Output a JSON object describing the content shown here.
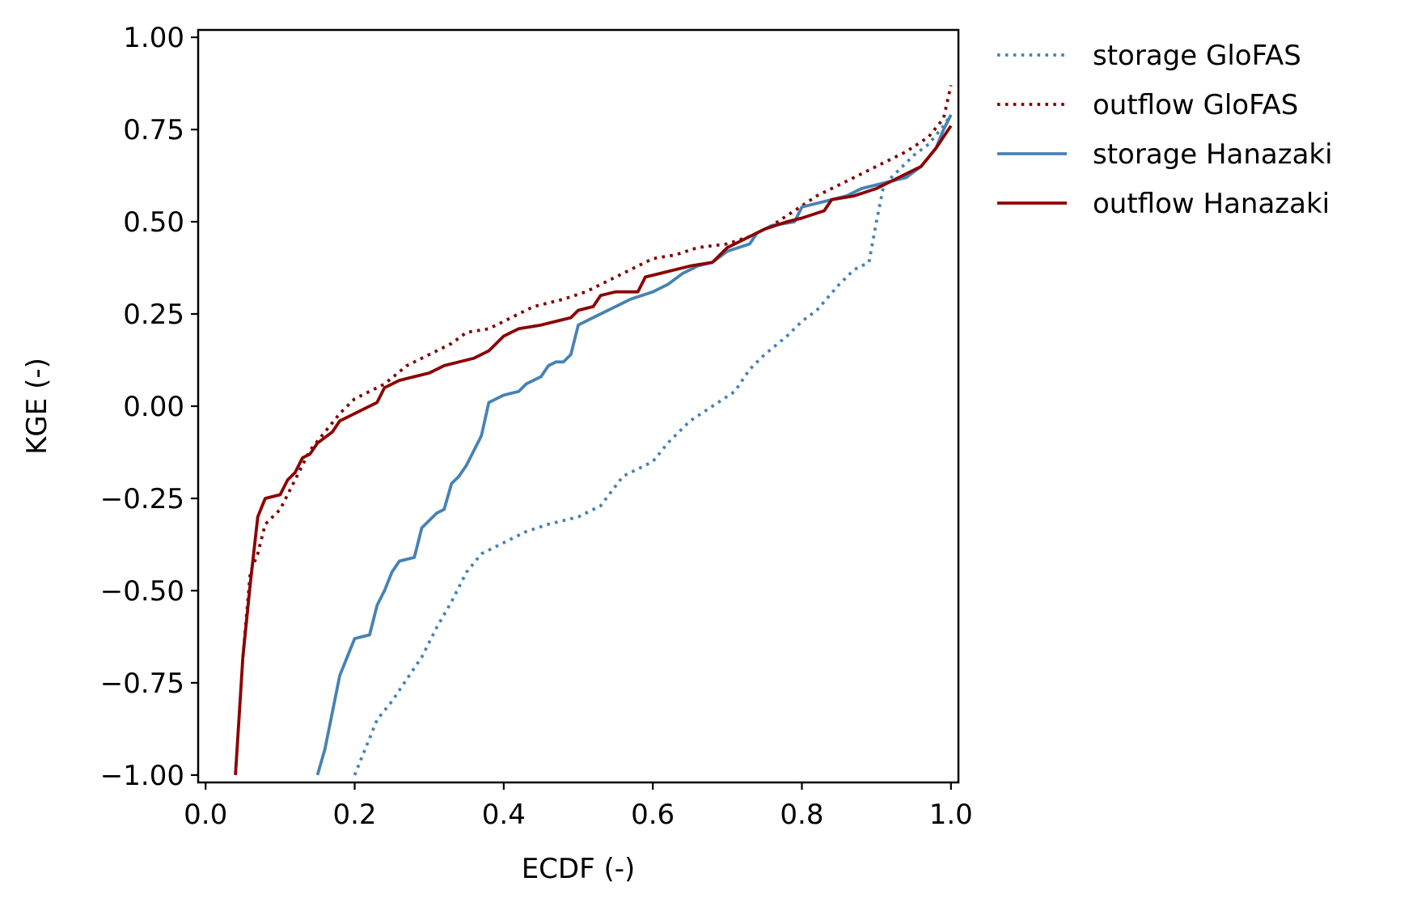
{
  "chart_data": {
    "type": "line",
    "xlabel": "ECDF (-)",
    "ylabel": "KGE (-)",
    "xlim": [
      -0.01,
      1.01
    ],
    "ylim": [
      -1.02,
      1.02
    ],
    "xticks": [
      "0.0",
      "0.2",
      "0.4",
      "0.6",
      "0.8",
      "1.0"
    ],
    "yticks": [
      "1.00",
      "0.75",
      "0.50",
      "0.25",
      "0.00",
      "−0.25",
      "−0.50",
      "−0.75",
      "−1.00"
    ],
    "grid": false,
    "legend_position": "outside-right",
    "series": [
      {
        "name": "storage GloFAS",
        "color": "#4682b4",
        "line_style": "dotted",
        "points": [
          [
            0.2,
            -1.0
          ],
          [
            0.21,
            -0.95
          ],
          [
            0.22,
            -0.9
          ],
          [
            0.23,
            -0.85
          ],
          [
            0.25,
            -0.8
          ],
          [
            0.27,
            -0.74
          ],
          [
            0.29,
            -0.68
          ],
          [
            0.31,
            -0.6
          ],
          [
            0.33,
            -0.53
          ],
          [
            0.35,
            -0.45
          ],
          [
            0.37,
            -0.4
          ],
          [
            0.4,
            -0.37
          ],
          [
            0.43,
            -0.34
          ],
          [
            0.46,
            -0.32
          ],
          [
            0.5,
            -0.3
          ],
          [
            0.53,
            -0.27
          ],
          [
            0.56,
            -0.19
          ],
          [
            0.6,
            -0.15
          ],
          [
            0.62,
            -0.1
          ],
          [
            0.65,
            -0.04
          ],
          [
            0.68,
            0.0
          ],
          [
            0.71,
            0.04
          ],
          [
            0.73,
            0.1
          ],
          [
            0.75,
            0.14
          ],
          [
            0.78,
            0.19
          ],
          [
            0.8,
            0.23
          ],
          [
            0.82,
            0.26
          ],
          [
            0.85,
            0.33
          ],
          [
            0.87,
            0.37
          ],
          [
            0.89,
            0.39
          ],
          [
            0.9,
            0.5
          ],
          [
            0.91,
            0.6
          ],
          [
            0.93,
            0.64
          ],
          [
            0.95,
            0.68
          ],
          [
            0.97,
            0.71
          ],
          [
            0.99,
            0.76
          ],
          [
            1.0,
            0.79
          ]
        ]
      },
      {
        "name": "outflow GloFAS",
        "color": "#800000",
        "line_style": "dotted",
        "points": [
          [
            0.05,
            -0.68
          ],
          [
            0.06,
            -0.45
          ],
          [
            0.07,
            -0.4
          ],
          [
            0.08,
            -0.32
          ],
          [
            0.1,
            -0.28
          ],
          [
            0.12,
            -0.2
          ],
          [
            0.14,
            -0.12
          ],
          [
            0.16,
            -0.07
          ],
          [
            0.18,
            -0.02
          ],
          [
            0.2,
            0.02
          ],
          [
            0.22,
            0.04
          ],
          [
            0.24,
            0.06
          ],
          [
            0.27,
            0.11
          ],
          [
            0.3,
            0.14
          ],
          [
            0.33,
            0.17
          ],
          [
            0.35,
            0.2
          ],
          [
            0.38,
            0.21
          ],
          [
            0.41,
            0.24
          ],
          [
            0.44,
            0.27
          ],
          [
            0.48,
            0.29
          ],
          [
            0.51,
            0.31
          ],
          [
            0.54,
            0.34
          ],
          [
            0.57,
            0.37
          ],
          [
            0.6,
            0.4
          ],
          [
            0.63,
            0.41
          ],
          [
            0.66,
            0.43
          ],
          [
            0.7,
            0.44
          ],
          [
            0.73,
            0.46
          ],
          [
            0.76,
            0.49
          ],
          [
            0.79,
            0.53
          ],
          [
            0.82,
            0.57
          ],
          [
            0.85,
            0.6
          ],
          [
            0.88,
            0.63
          ],
          [
            0.91,
            0.66
          ],
          [
            0.94,
            0.69
          ],
          [
            0.97,
            0.73
          ],
          [
            0.99,
            0.78
          ],
          [
            1.0,
            0.87
          ]
        ]
      },
      {
        "name": "storage Hanazaki",
        "color": "#4682b4",
        "line_style": "solid",
        "points": [
          [
            0.15,
            -1.0
          ],
          [
            0.16,
            -0.93
          ],
          [
            0.17,
            -0.83
          ],
          [
            0.18,
            -0.73
          ],
          [
            0.19,
            -0.68
          ],
          [
            0.2,
            -0.63
          ],
          [
            0.22,
            -0.62
          ],
          [
            0.23,
            -0.54
          ],
          [
            0.24,
            -0.5
          ],
          [
            0.25,
            -0.45
          ],
          [
            0.26,
            -0.42
          ],
          [
            0.28,
            -0.41
          ],
          [
            0.29,
            -0.33
          ],
          [
            0.3,
            -0.31
          ],
          [
            0.31,
            -0.29
          ],
          [
            0.32,
            -0.28
          ],
          [
            0.33,
            -0.21
          ],
          [
            0.34,
            -0.19
          ],
          [
            0.35,
            -0.16
          ],
          [
            0.36,
            -0.12
          ],
          [
            0.37,
            -0.08
          ],
          [
            0.38,
            0.01
          ],
          [
            0.4,
            0.03
          ],
          [
            0.42,
            0.04
          ],
          [
            0.43,
            0.06
          ],
          [
            0.45,
            0.08
          ],
          [
            0.46,
            0.11
          ],
          [
            0.47,
            0.12
          ],
          [
            0.48,
            0.12
          ],
          [
            0.49,
            0.14
          ],
          [
            0.5,
            0.22
          ],
          [
            0.51,
            0.23
          ],
          [
            0.53,
            0.25
          ],
          [
            0.55,
            0.27
          ],
          [
            0.57,
            0.29
          ],
          [
            0.6,
            0.31
          ],
          [
            0.62,
            0.33
          ],
          [
            0.64,
            0.36
          ],
          [
            0.66,
            0.38
          ],
          [
            0.68,
            0.39
          ],
          [
            0.7,
            0.42
          ],
          [
            0.73,
            0.44
          ],
          [
            0.74,
            0.47
          ],
          [
            0.76,
            0.49
          ],
          [
            0.79,
            0.5
          ],
          [
            0.8,
            0.54
          ],
          [
            0.82,
            0.55
          ],
          [
            0.84,
            0.56
          ],
          [
            0.86,
            0.57
          ],
          [
            0.88,
            0.59
          ],
          [
            0.9,
            0.6
          ],
          [
            0.92,
            0.61
          ],
          [
            0.94,
            0.62
          ],
          [
            0.96,
            0.65
          ],
          [
            0.98,
            0.7
          ],
          [
            0.99,
            0.75
          ],
          [
            1.0,
            0.79
          ]
        ]
      },
      {
        "name": "outflow Hanazaki",
        "color": "#8b0000",
        "line_style": "solid",
        "points": [
          [
            0.04,
            -1.0
          ],
          [
            0.05,
            -0.68
          ],
          [
            0.06,
            -0.48
          ],
          [
            0.07,
            -0.3
          ],
          [
            0.08,
            -0.25
          ],
          [
            0.1,
            -0.24
          ],
          [
            0.11,
            -0.2
          ],
          [
            0.12,
            -0.18
          ],
          [
            0.13,
            -0.14
          ],
          [
            0.14,
            -0.13
          ],
          [
            0.15,
            -0.1
          ],
          [
            0.17,
            -0.07
          ],
          [
            0.18,
            -0.04
          ],
          [
            0.19,
            -0.03
          ],
          [
            0.21,
            -0.01
          ],
          [
            0.23,
            0.01
          ],
          [
            0.24,
            0.05
          ],
          [
            0.26,
            0.07
          ],
          [
            0.28,
            0.08
          ],
          [
            0.3,
            0.09
          ],
          [
            0.32,
            0.11
          ],
          [
            0.34,
            0.12
          ],
          [
            0.36,
            0.13
          ],
          [
            0.38,
            0.15
          ],
          [
            0.4,
            0.19
          ],
          [
            0.42,
            0.21
          ],
          [
            0.45,
            0.22
          ],
          [
            0.47,
            0.23
          ],
          [
            0.49,
            0.24
          ],
          [
            0.5,
            0.26
          ],
          [
            0.52,
            0.27
          ],
          [
            0.53,
            0.3
          ],
          [
            0.55,
            0.31
          ],
          [
            0.58,
            0.31
          ],
          [
            0.59,
            0.35
          ],
          [
            0.61,
            0.36
          ],
          [
            0.63,
            0.37
          ],
          [
            0.65,
            0.38
          ],
          [
            0.68,
            0.39
          ],
          [
            0.7,
            0.43
          ],
          [
            0.73,
            0.46
          ],
          [
            0.75,
            0.48
          ],
          [
            0.78,
            0.5
          ],
          [
            0.8,
            0.51
          ],
          [
            0.83,
            0.53
          ],
          [
            0.84,
            0.56
          ],
          [
            0.87,
            0.57
          ],
          [
            0.9,
            0.59
          ],
          [
            0.92,
            0.61
          ],
          [
            0.94,
            0.63
          ],
          [
            0.96,
            0.65
          ],
          [
            0.98,
            0.7
          ],
          [
            0.99,
            0.73
          ],
          [
            1.0,
            0.76
          ]
        ]
      }
    ]
  }
}
